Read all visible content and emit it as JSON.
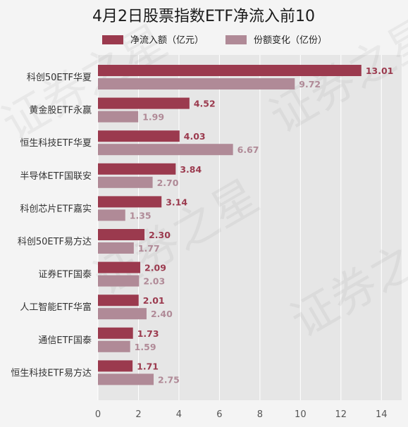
{
  "chart_data": {
    "type": "bar",
    "orientation": "horizontal",
    "title": "4月2日股票指数ETF净流入前10",
    "categories": [
      "科创50ETF华夏",
      "黄金股ETF永赢",
      "恒生科技ETF华夏",
      "半导体ETF国联安",
      "科创芯片ETF嘉实",
      "科创50ETF易方达",
      "证券ETF国泰",
      "人工智能ETF华富",
      "通信ETF国泰",
      "恒生科技ETF易方达"
    ],
    "series": [
      {
        "name": "净流入额（亿元）",
        "color": "#9b3a4e",
        "values": [
          13.01,
          4.52,
          4.03,
          3.84,
          3.14,
          2.3,
          2.09,
          2.01,
          1.73,
          1.71
        ],
        "labels": [
          "13.01",
          "4.52",
          "4.03",
          "3.84",
          "3.14",
          "2.30",
          "2.09",
          "2.01",
          "1.73",
          "1.71"
        ]
      },
      {
        "name": "份额变化（亿份）",
        "color": "#b08a97",
        "values": [
          9.72,
          1.99,
          6.67,
          2.7,
          1.35,
          1.77,
          2.03,
          2.4,
          1.59,
          2.75
        ],
        "labels": [
          "9.72",
          "1.99",
          "6.67",
          "2.70",
          "1.35",
          "1.77",
          "2.03",
          "2.40",
          "1.59",
          "2.75"
        ]
      }
    ],
    "xlim": [
      0,
      15
    ],
    "xticks": [
      "0",
      "2",
      "4",
      "6",
      "8",
      "10",
      "12",
      "14"
    ],
    "grid": true,
    "legend": "top"
  },
  "watermark": "证券之星"
}
